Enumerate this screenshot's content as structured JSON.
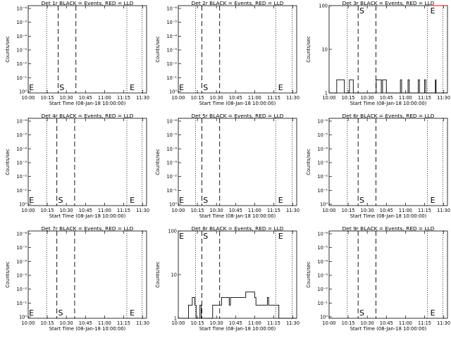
{
  "figure": {
    "colors": {
      "events": "#000000",
      "lld": "#ff0000",
      "background": "#ffffff"
    }
  },
  "chart_data": [
    {
      "type": "line",
      "title": "Det 1r BLACK = Events, RED = LLD",
      "xlabel": "Start Time (08-Jan-18 10:00:00)",
      "ylabel": "Counts/sec",
      "x_ticks": [
        "10:00",
        "10:15",
        "10:30",
        "10:45",
        "11:00",
        "11:15",
        "11:30"
      ],
      "xlim_minutes": [
        0,
        93
      ],
      "y_scale": "log",
      "y_ticks": [
        "10⁰",
        "10⁻¹",
        "10⁻²",
        "10⁻³",
        "10⁻⁴",
        "10⁻⁵",
        "10⁻⁶"
      ],
      "ylim": [
        7e-07,
        1.5
      ],
      "markers": [
        {
          "label": "E",
          "x": 0.6
        },
        {
          "label": "S",
          "x": 24.5
        },
        {
          "label": "E",
          "x": 79.8
        }
      ],
      "dotted_lines_x": [
        14.5,
        77.5,
        89.5
      ],
      "dashed_lines_x": [
        23.5,
        37.5
      ],
      "series": []
    },
    {
      "type": "line",
      "title": "Det 2r BLACK = Events, RED = LLD",
      "xlabel": "Start Time (08-Jan-18 10:00:00)",
      "ylabel": "Counts/sec",
      "x_ticks": [
        "10:00",
        "10:15",
        "10:30",
        "10:45",
        "11:00",
        "11:15",
        "11:30"
      ],
      "xlim_minutes": [
        0,
        93
      ],
      "y_scale": "log",
      "y_ticks": [
        "10⁰",
        "10⁻¹",
        "10⁻²",
        "10⁻³",
        "10⁻⁴",
        "10⁻⁵",
        "10⁻⁶"
      ],
      "ylim": [
        7e-07,
        1.5
      ],
      "markers": [
        {
          "label": "E",
          "x": 0.6
        },
        {
          "label": "S",
          "x": 19.5
        },
        {
          "label": "E",
          "x": 78.5
        }
      ],
      "dotted_lines_x": [
        13.5,
        76.5,
        89.5
      ],
      "dashed_lines_x": [
        18.5,
        32.5
      ],
      "series": []
    },
    {
      "type": "line",
      "title": "Det 3r BLACK = Events, RED = LLD",
      "xlabel": "Start Time (08-Jan-18 10:00:00)",
      "ylabel": "Counts/sec",
      "x_ticks": [
        "10:00",
        "10:15",
        "10:30",
        "10:45",
        "11:00",
        "11:15",
        "11:30"
      ],
      "xlim_minutes": [
        0,
        93
      ],
      "y_scale": "log",
      "y_ticks": [
        "1",
        "10",
        "100"
      ],
      "ylim": [
        1,
        100
      ],
      "markers": [
        {
          "label": "S",
          "x": 23.8
        },
        {
          "label": "E",
          "x": 79.5
        }
      ],
      "dotted_lines_x": [
        14.3,
        77.3,
        89.3
      ],
      "dashed_lines_x": [
        22.8,
        36.8
      ],
      "series": [
        {
          "color": "#000000",
          "x": [
            0,
            5,
            6,
            11,
            12,
            15,
            16,
            18,
            19,
            22,
            23,
            36,
            37,
            41,
            42,
            44,
            45,
            56,
            57,
            62,
            63,
            70,
            71,
            75,
            76,
            82,
            83,
            83.5,
            84,
            93
          ],
          "y": [
            1,
            1,
            2,
            2,
            1,
            1,
            2,
            2,
            1,
            1,
            1,
            1,
            2,
            1,
            2,
            2,
            1,
            2,
            1,
            2,
            1,
            2,
            1,
            2,
            1,
            1,
            1,
            2,
            1,
            1
          ]
        },
        {
          "color": "#ff0000",
          "x": [
            80,
            92
          ],
          "y": [
            100,
            100
          ]
        }
      ]
    },
    {
      "type": "line",
      "title": "Det 4r BLACK = Events, RED = LLD",
      "xlabel": "Start Time (08-Jan-18 10:00:00)",
      "ylabel": "Counts/sec",
      "x_ticks": [
        "10:00",
        "10:15",
        "10:30",
        "10:45",
        "11:00",
        "11:15",
        "11:30"
      ],
      "xlim_minutes": [
        0,
        93
      ],
      "y_scale": "log",
      "y_ticks": [
        "10⁰",
        "10⁻¹",
        "10⁻²",
        "10⁻³",
        "10⁻⁴",
        "10⁻⁵",
        "10⁻⁶"
      ],
      "ylim": [
        7e-07,
        1.5
      ],
      "markers": [
        {
          "label": "E",
          "x": 0.6
        },
        {
          "label": "S",
          "x": 23.5
        },
        {
          "label": "E",
          "x": 79.8
        }
      ],
      "dotted_lines_x": [
        14.5,
        77.5,
        89.5
      ],
      "dashed_lines_x": [
        22.5,
        36.5
      ],
      "series": []
    },
    {
      "type": "line",
      "title": "Det 5r BLACK = Events, RED = LLD",
      "xlabel": "Start Time (08-Jan-18 10:00:00)",
      "ylabel": "Counts/sec",
      "x_ticks": [
        "10:00",
        "10:15",
        "10:30",
        "10:45",
        "11:00",
        "11:15",
        "11:30"
      ],
      "xlim_minutes": [
        0,
        93
      ],
      "y_scale": "log",
      "y_ticks": [
        "10⁰",
        "10⁻¹",
        "10⁻²",
        "10⁻³",
        "10⁻⁴",
        "10⁻⁵",
        "10⁻⁶"
      ],
      "ylim": [
        7e-07,
        1.5
      ],
      "markers": [
        {
          "label": "E",
          "x": 0.6
        },
        {
          "label": "S",
          "x": 19.5
        },
        {
          "label": "E",
          "x": 78.5
        }
      ],
      "dotted_lines_x": [
        13.5,
        76.5,
        89.5
      ],
      "dashed_lines_x": [
        18.5,
        32.5
      ],
      "series": []
    },
    {
      "type": "line",
      "title": "Det 6r BLACK = Events, RED = LLD",
      "xlabel": "Start Time (08-Jan-18 10:00:00)",
      "ylabel": "Counts/sec",
      "x_ticks": [
        "10:00",
        "10:15",
        "10:30",
        "10:45",
        "11:00",
        "11:15",
        "11:30"
      ],
      "xlim_minutes": [
        0,
        93
      ],
      "y_scale": "log",
      "y_ticks": [
        "10⁰",
        "10⁻¹",
        "10⁻²",
        "10⁻³",
        "10⁻⁴",
        "10⁻⁵",
        "10⁻⁶"
      ],
      "ylim": [
        7e-07,
        1.5
      ],
      "markers": [
        {
          "label": "S",
          "x": 23.8
        },
        {
          "label": "E",
          "x": 79.5
        }
      ],
      "dotted_lines_x": [
        14.3,
        77.3,
        89.3
      ],
      "dashed_lines_x": [
        22.8,
        36.8
      ],
      "series": []
    },
    {
      "type": "line",
      "title": "Det 7r BLACK = Events, RED = LLD",
      "xlabel": "Start Time (08-Jan-18 10:00:00)",
      "ylabel": "Counts/sec",
      "x_ticks": [
        "10:00",
        "10:15",
        "10:30",
        "10:45",
        "11:00",
        "11:15",
        "11:30"
      ],
      "xlim_minutes": [
        0,
        93
      ],
      "y_scale": "log",
      "y_ticks": [
        "10⁰",
        "10⁻¹",
        "10⁻²",
        "10⁻³",
        "10⁻⁴",
        "10⁻⁵",
        "10⁻⁶"
      ],
      "ylim": [
        7e-07,
        1.5
      ],
      "markers": [
        {
          "label": "E",
          "x": 0.6
        },
        {
          "label": "S",
          "x": 23.5
        },
        {
          "label": "E",
          "x": 79.8
        }
      ],
      "dotted_lines_x": [
        14.5,
        77.5,
        89.5
      ],
      "dashed_lines_x": [
        22.5,
        36.5
      ],
      "series": []
    },
    {
      "type": "line",
      "title": "Det 8r BLACK = Events, RED = LLD",
      "xlabel": "Start Time (08-Jan-18 10:00:00)",
      "ylabel": "Counts/sec",
      "x_ticks": [
        "10:00",
        "10:15",
        "10:30",
        "10:45",
        "11:00",
        "11:15",
        "11:30"
      ],
      "xlim_minutes": [
        0,
        93
      ],
      "y_scale": "log",
      "y_ticks": [
        "1",
        "10",
        "100"
      ],
      "ylim": [
        1,
        100
      ],
      "markers": [
        {
          "label": "E",
          "x": 0.6
        },
        {
          "label": "S",
          "x": 19.5
        },
        {
          "label": "E",
          "x": 78.5
        }
      ],
      "dotted_lines_x": [
        13.5,
        76.5,
        89.5
      ],
      "dashed_lines_x": [
        18.5,
        32.5
      ],
      "series": [
        {
          "color": "#000000",
          "x": [
            0,
            7,
            8,
            10,
            11,
            13,
            14,
            17,
            18,
            20,
            21,
            26,
            27,
            33,
            34,
            40,
            41,
            52,
            53,
            60,
            61,
            70,
            71,
            78,
            79,
            93
          ],
          "y": [
            1,
            1,
            2,
            2,
            3,
            2,
            1,
            2,
            1,
            1,
            1,
            1,
            2,
            2,
            3,
            2,
            3,
            3,
            4,
            3,
            2,
            3,
            2,
            2,
            1,
            1
          ]
        }
      ]
    },
    {
      "type": "line",
      "title": "Det 9r BLACK = Events, RED = LLD",
      "xlabel": "Start Time (08-Jan-18 10:00:00)",
      "ylabel": "Counts/sec",
      "x_ticks": [
        "10:00",
        "10:15",
        "10:30",
        "10:45",
        "11:00",
        "11:15",
        "11:30"
      ],
      "xlim_minutes": [
        0,
        93
      ],
      "y_scale": "log",
      "y_ticks": [
        "10⁰",
        "10⁻¹",
        "10⁻²",
        "10⁻³",
        "10⁻⁴",
        "10⁻⁵",
        "10⁻⁶"
      ],
      "ylim": [
        7e-07,
        1.5
      ],
      "markers": [
        {
          "label": "S",
          "x": 23.8
        },
        {
          "label": "E",
          "x": 79.5
        }
      ],
      "dotted_lines_x": [
        14.3,
        77.3,
        89.3
      ],
      "dashed_lines_x": [
        22.8,
        36.8
      ],
      "series": []
    }
  ]
}
